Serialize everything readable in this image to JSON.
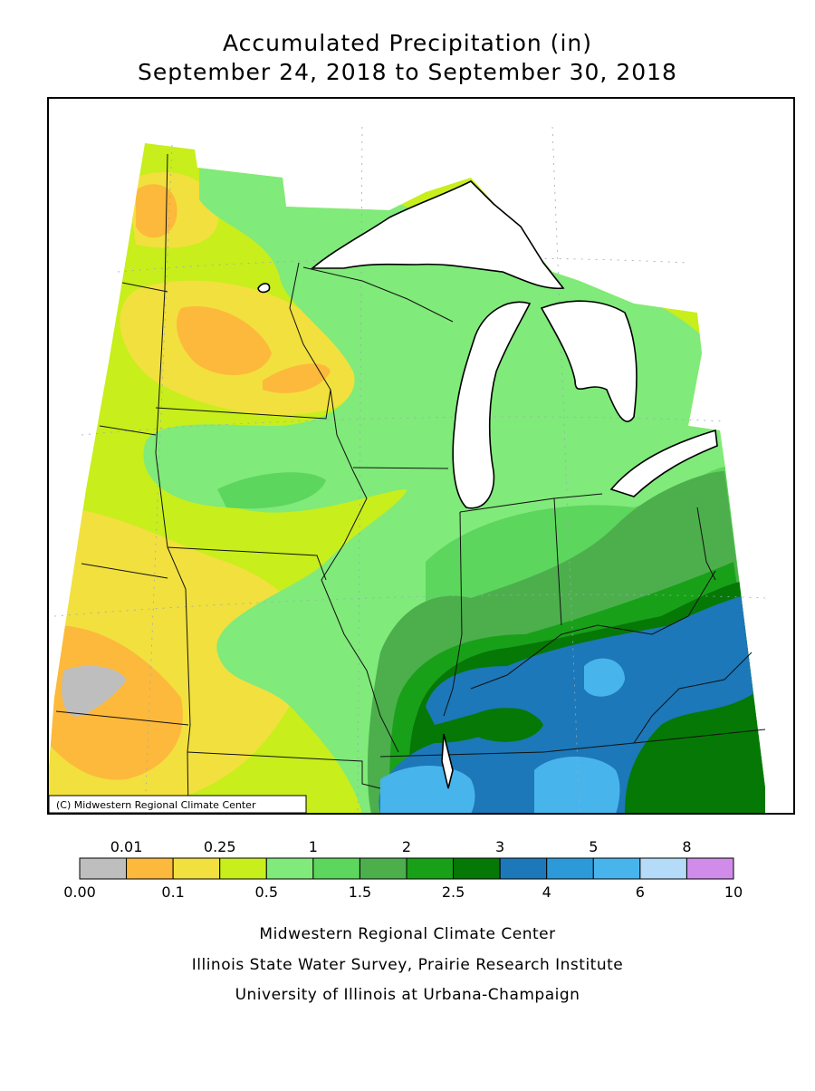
{
  "header": {
    "title": "Accumulated Precipitation (in)",
    "subtitle": "September 24, 2018 to September 30, 2018"
  },
  "map": {
    "credit": "(C) Midwestern Regional Climate Center"
  },
  "legend": {
    "colors": [
      "#bebebe",
      "#fdb93b",
      "#f2e03e",
      "#c8ee1c",
      "#80ea7a",
      "#5cd65c",
      "#4caf4c",
      "#19a019",
      "#067806",
      "#1c78b8",
      "#2c9ad8",
      "#48b4ec",
      "#b4dcf8",
      "#d08ce8"
    ],
    "boundaries": [
      "0.00",
      "0.01",
      "0.1",
      "0.25",
      "0.5",
      "1",
      "1.5",
      "2",
      "2.5",
      "3",
      "4",
      "5",
      "6",
      "8",
      "10"
    ]
  },
  "footer": {
    "lines": [
      "Midwestern Regional Climate Center",
      "Illinois State Water Survey, Prairie Research Institute",
      "University of Illinois at Urbana-Champaign"
    ]
  }
}
